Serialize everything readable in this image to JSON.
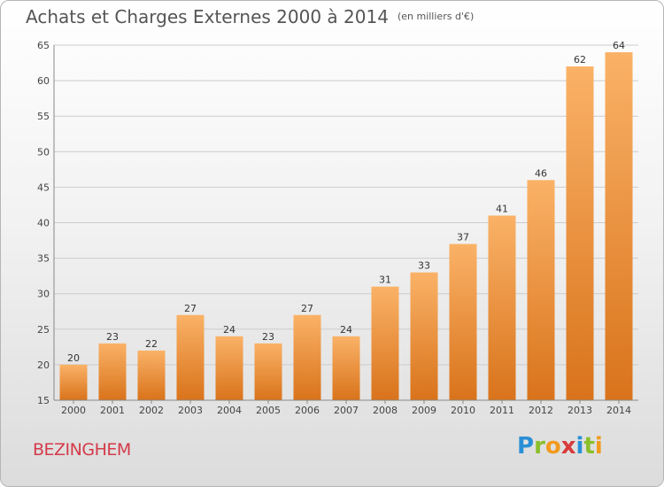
{
  "title": "Achats et Charges Externes 2000 à 2014",
  "unit_note": "(en milliers d'€)",
  "city": "BEZINGHEM",
  "brand": {
    "letters": [
      "P",
      "r",
      "o",
      "x",
      "i",
      "t",
      "i"
    ],
    "colors": [
      "#2a8fd6",
      "#8bbf2a",
      "#f29a1f",
      "#d93a3a",
      "#2a8fd6",
      "#8bbf2a",
      "#f29a1f"
    ]
  },
  "colors": {
    "bar_light": "#fab267",
    "bar_dark": "#d9731b",
    "grid": "#cccccc",
    "title": "#555555",
    "city": "#d43a4a"
  },
  "chart_data": {
    "type": "bar",
    "categories": [
      "2000",
      "2001",
      "2002",
      "2003",
      "2004",
      "2005",
      "2006",
      "2007",
      "2008",
      "2009",
      "2010",
      "2011",
      "2012",
      "2013",
      "2014"
    ],
    "values": [
      20,
      23,
      22,
      27,
      24,
      23,
      27,
      24,
      31,
      33,
      37,
      41,
      46,
      62,
      64
    ],
    "ylim": [
      15,
      65
    ],
    "yticks": [
      15,
      20,
      25,
      30,
      35,
      40,
      45,
      50,
      55,
      60,
      65
    ],
    "grid": true,
    "data_labels": true
  }
}
